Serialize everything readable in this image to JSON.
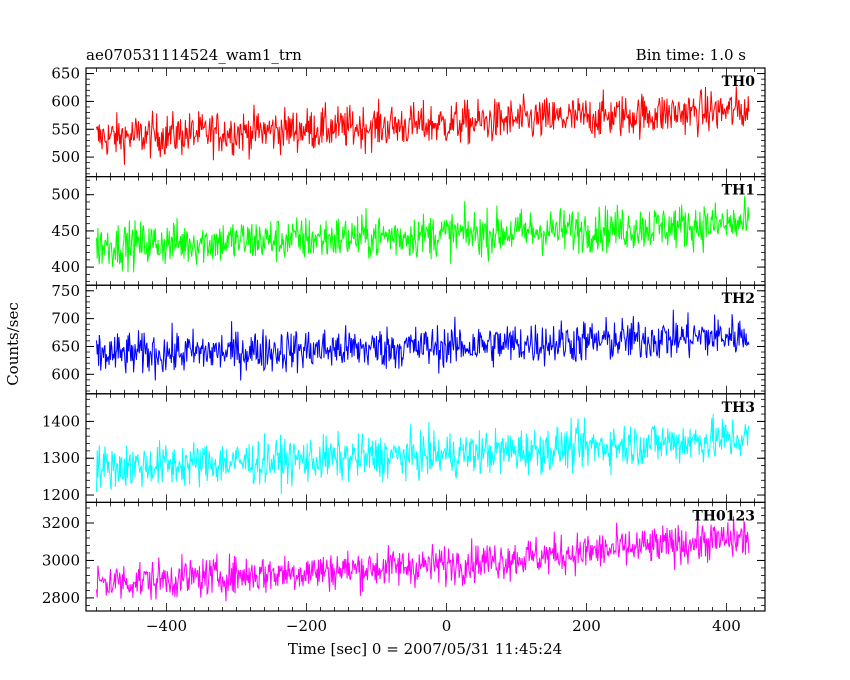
{
  "chart_data": {
    "type": "line",
    "title": "ae070531114524_wam1_trn",
    "subtitle": "Bin time: 1.0 s",
    "xlabel": "Time [sec] 0 = 2007/05/31 11:45:24",
    "ylabel": "Counts/sec",
    "xlim": [
      -515,
      455
    ],
    "x_range": [
      -500,
      432
    ],
    "xticks": [
      -400,
      -200,
      0,
      200,
      400
    ],
    "panels": [
      {
        "name": "TH0",
        "color": "#ff0000",
        "ylim": [
          465,
          660
        ],
        "yticks": [
          500,
          550,
          600,
          650
        ],
        "level_x": [
          -500,
          0,
          432
        ],
        "level_y": [
          535,
          560,
          585
        ],
        "spread": 35
      },
      {
        "name": "TH1",
        "color": "#00ff00",
        "ylim": [
          375,
          525
        ],
        "yticks": [
          400,
          450,
          500
        ],
        "level_x": [
          -500,
          0,
          432
        ],
        "level_y": [
          430,
          445,
          460
        ],
        "spread": 28
      },
      {
        "name": "TH2",
        "color": "#0000ff",
        "ylim": [
          565,
          760
        ],
        "yticks": [
          600,
          650,
          700,
          750
        ],
        "level_x": [
          -500,
          0,
          432
        ],
        "level_y": [
          635,
          650,
          670
        ],
        "spread": 35
      },
      {
        "name": "TH3",
        "color": "#00ffff",
        "ylim": [
          1180,
          1475
        ],
        "yticks": [
          1200,
          1300,
          1400
        ],
        "level_x": [
          -500,
          0,
          432
        ],
        "level_y": [
          1275,
          1310,
          1355
        ],
        "spread": 55
      },
      {
        "name": "TH0123",
        "color": "#ff00ff",
        "ylim": [
          2730,
          3310
        ],
        "yticks": [
          2800,
          3000,
          3200
        ],
        "level_x": [
          -500,
          0,
          432
        ],
        "level_y": [
          2880,
          2980,
          3120
        ],
        "spread": 95
      }
    ]
  }
}
